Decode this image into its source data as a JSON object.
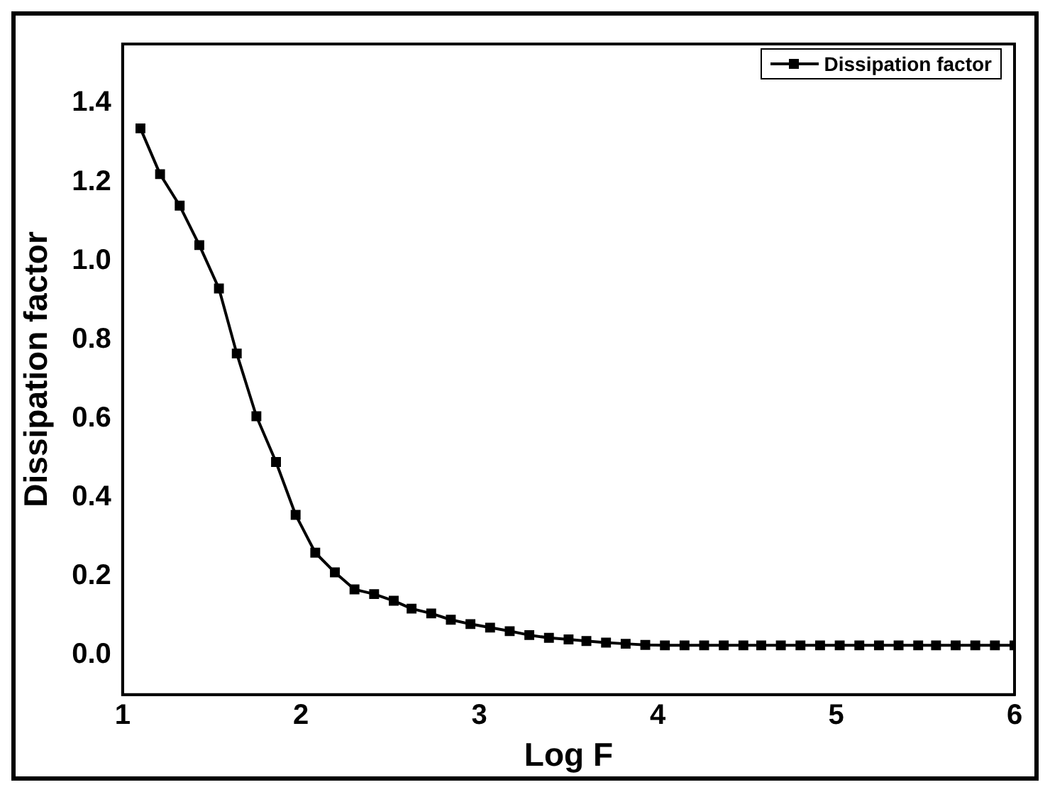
{
  "chart_data": {
    "type": "line",
    "xlabel": "Log F",
    "ylabel": "Dissipation factor",
    "xlim": [
      1,
      6
    ],
    "xticks": [
      1,
      2,
      3,
      4,
      5,
      6
    ],
    "ylim": [
      -0.1,
      1.55
    ],
    "yticks": [
      {
        "value": 0,
        "label": "0.0"
      },
      0.2,
      0.4,
      0.6,
      0.8,
      {
        "value": 1,
        "label": "1.0"
      },
      1.2,
      1.4
    ],
    "grid": false,
    "legend": "top right",
    "marker": "square",
    "line_style": "solid",
    "series": [
      {
        "name": "Dissipation factor",
        "color": "#000000",
        "x": [
          1.1,
          1.21,
          1.32,
          1.43,
          1.54,
          1.64,
          1.75,
          1.86,
          1.97,
          2.08,
          2.19,
          2.3,
          2.41,
          2.52,
          2.62,
          2.73,
          2.84,
          2.95,
          3.06,
          3.17,
          3.28,
          3.39,
          3.5,
          3.6,
          3.71,
          3.82,
          3.93,
          4.04,
          4.15,
          4.26,
          4.37,
          4.48,
          4.58,
          4.69,
          4.8,
          4.91,
          5.02,
          5.13,
          5.24,
          5.35,
          5.46,
          5.56,
          5.67,
          5.78,
          5.89,
          6.0
        ],
        "values": [
          1.336,
          1.22,
          1.14,
          1.04,
          0.93,
          0.765,
          0.606,
          0.49,
          0.356,
          0.26,
          0.21,
          0.167,
          0.155,
          0.138,
          0.118,
          0.106,
          0.09,
          0.079,
          0.07,
          0.061,
          0.051,
          0.044,
          0.04,
          0.036,
          0.032,
          0.029,
          0.026,
          0.025,
          0.025,
          0.025,
          0.025,
          0.025,
          0.025,
          0.025,
          0.025,
          0.025,
          0.025,
          0.025,
          0.025,
          0.025,
          0.025,
          0.025,
          0.025,
          0.025,
          0.025,
          0.025
        ]
      }
    ]
  }
}
